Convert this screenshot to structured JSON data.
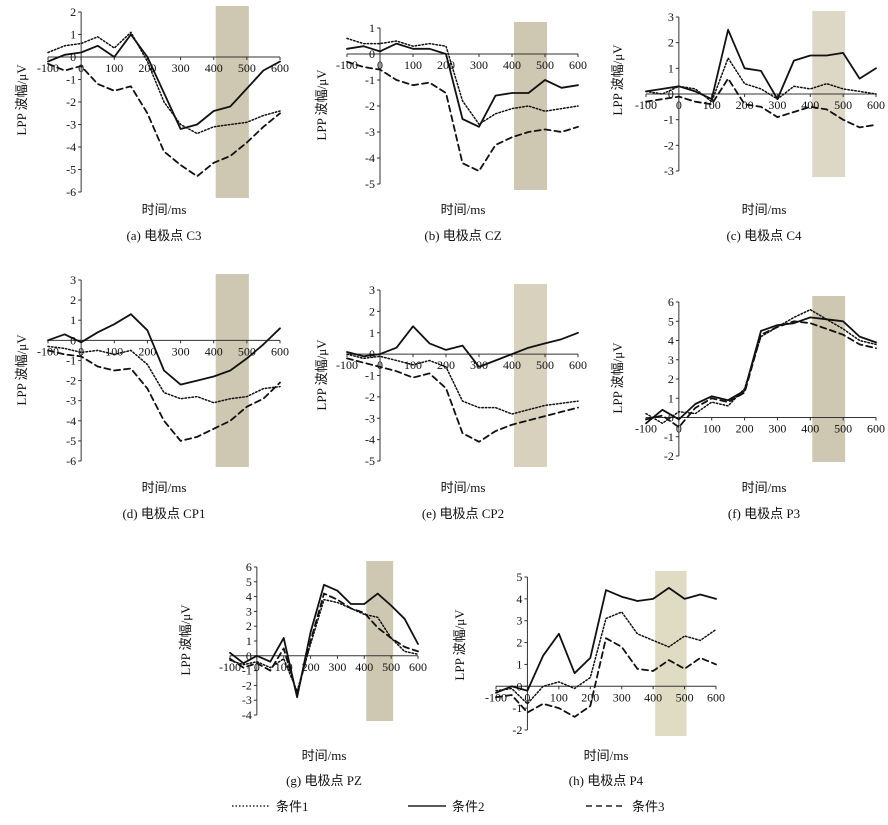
{
  "figure": {
    "legend": [
      {
        "label": "条件1",
        "style": "dotted"
      },
      {
        "label": "条件2",
        "style": "solid"
      },
      {
        "label": "条件3",
        "style": "dashed"
      }
    ]
  },
  "chart_data": [
    {
      "type": "line",
      "caption": "(a) 电极点 C3",
      "xlabel": "时间/ms",
      "ylabel": "LPP 波幅/μV",
      "xlim": [
        -100,
        600
      ],
      "ylim": [
        -6,
        2
      ],
      "xticks": [
        -100,
        0,
        100,
        200,
        300,
        400,
        500,
        600
      ],
      "yticks": [
        2,
        1,
        0,
        -1,
        -2,
        -3,
        -4,
        -5,
        -6
      ],
      "window": [
        400,
        500
      ],
      "window_color": "#c9c1a8",
      "series": [
        {
          "name": "条件1",
          "x": [
            -100,
            -50,
            0,
            50,
            100,
            150,
            200,
            250,
            300,
            350,
            400,
            450,
            500,
            550,
            600
          ],
          "values": [
            0.2,
            0.5,
            0.6,
            0.9,
            0.4,
            1.1,
            -0.2,
            -2.0,
            -3.0,
            -3.4,
            -3.1,
            -3.0,
            -2.9,
            -2.6,
            -2.4
          ]
        },
        {
          "name": "条件2",
          "x": [
            -100,
            -50,
            0,
            50,
            100,
            150,
            200,
            250,
            300,
            350,
            400,
            450,
            500,
            550,
            600
          ],
          "values": [
            -0.2,
            0.1,
            0.2,
            0.5,
            0.0,
            1.0,
            0.0,
            -1.6,
            -3.2,
            -3.0,
            -2.4,
            -2.2,
            -1.4,
            -0.6,
            -0.2
          ]
        },
        {
          "name": "条件3",
          "x": [
            -100,
            -50,
            0,
            50,
            100,
            150,
            200,
            250,
            300,
            350,
            400,
            450,
            500,
            550,
            600
          ],
          "values": [
            -0.3,
            -0.6,
            -0.4,
            -1.2,
            -1.5,
            -1.3,
            -2.5,
            -4.2,
            -4.8,
            -5.3,
            -4.7,
            -4.4,
            -3.8,
            -3.1,
            -2.5
          ]
        }
      ]
    },
    {
      "type": "line",
      "caption": "(b) 电极点 CZ",
      "xlabel": "时间/ms",
      "ylabel": "LPP 波幅/μV",
      "xlim": [
        -100,
        600
      ],
      "ylim": [
        -5,
        1
      ],
      "xticks": [
        -100,
        0,
        100,
        200,
        300,
        400,
        500,
        600
      ],
      "yticks": [
        1,
        0,
        -1,
        -2,
        -3,
        -4,
        -5
      ],
      "window": [
        400,
        500
      ],
      "window_color": "#c9c1a8",
      "series": [
        {
          "name": "条件1",
          "x": [
            -100,
            -50,
            0,
            50,
            100,
            150,
            200,
            250,
            300,
            350,
            400,
            450,
            500,
            550,
            600
          ],
          "values": [
            0.6,
            0.4,
            0.4,
            0.5,
            0.3,
            0.4,
            0.3,
            -1.8,
            -2.7,
            -2.3,
            -2.1,
            -2.0,
            -2.2,
            -2.1,
            -2.0
          ]
        },
        {
          "name": "条件2",
          "x": [
            -100,
            -50,
            0,
            50,
            100,
            150,
            200,
            250,
            300,
            350,
            400,
            450,
            500,
            550,
            600
          ],
          "values": [
            0.2,
            0.3,
            0.1,
            0.4,
            0.2,
            0.2,
            0.0,
            -2.5,
            -2.8,
            -1.6,
            -1.5,
            -1.5,
            -1.0,
            -1.3,
            -1.2
          ]
        },
        {
          "name": "条件3",
          "x": [
            -100,
            -50,
            0,
            50,
            100,
            150,
            200,
            250,
            300,
            350,
            400,
            450,
            500,
            550,
            600
          ],
          "values": [
            -0.3,
            -0.5,
            -0.6,
            -1.0,
            -1.2,
            -1.1,
            -1.5,
            -4.2,
            -4.5,
            -3.5,
            -3.2,
            -3.0,
            -2.9,
            -3.0,
            -2.8
          ]
        }
      ]
    },
    {
      "type": "line",
      "caption": "(c) 电极点 C4",
      "xlabel": "时间/ms",
      "ylabel": "LPP 波幅/μV",
      "xlim": [
        -100,
        600
      ],
      "ylim": [
        -3,
        3
      ],
      "xticks": [
        -100,
        0,
        100,
        200,
        300,
        400,
        500,
        600
      ],
      "yticks": [
        3,
        2,
        1,
        0,
        -1,
        -2,
        -3
      ],
      "window": [
        400,
        500
      ],
      "window_color": "#d9d3bf",
      "series": [
        {
          "name": "条件1",
          "x": [
            -100,
            -50,
            0,
            50,
            100,
            150,
            200,
            250,
            300,
            350,
            400,
            450,
            500,
            550,
            600
          ],
          "values": [
            0.1,
            0.0,
            0.3,
            0.2,
            -0.3,
            1.4,
            0.4,
            0.2,
            -0.2,
            0.3,
            0.2,
            0.4,
            0.2,
            0.1,
            0.0
          ]
        },
        {
          "name": "条件2",
          "x": [
            -100,
            -50,
            0,
            50,
            100,
            150,
            200,
            250,
            300,
            350,
            400,
            450,
            500,
            550,
            600
          ],
          "values": [
            0.1,
            0.2,
            0.3,
            0.1,
            -0.2,
            2.5,
            1.0,
            0.9,
            -0.2,
            1.3,
            1.5,
            1.5,
            1.6,
            0.6,
            1.0
          ]
        },
        {
          "name": "条件3",
          "x": [
            -100,
            -50,
            0,
            50,
            100,
            150,
            200,
            250,
            300,
            350,
            400,
            450,
            500,
            550,
            600
          ],
          "values": [
            -0.3,
            -0.2,
            -0.1,
            -0.3,
            -0.4,
            0.6,
            -0.4,
            -0.5,
            -0.9,
            -0.7,
            -0.5,
            -0.6,
            -1.0,
            -1.3,
            -1.2
          ]
        }
      ]
    },
    {
      "type": "line",
      "caption": "(d) 电极点 CP1",
      "xlabel": "时间/ms",
      "ylabel": "LPP 波幅/μV",
      "xlim": [
        -100,
        600
      ],
      "ylim": [
        -6,
        3
      ],
      "xticks": [
        -100,
        0,
        100,
        200,
        300,
        400,
        500,
        600
      ],
      "yticks": [
        3,
        2,
        1,
        0,
        -1,
        -2,
        -3,
        -4,
        -5,
        -6
      ],
      "window": [
        400,
        500
      ],
      "window_color": "#c9c1a8",
      "series": [
        {
          "name": "条件1",
          "x": [
            -100,
            -50,
            0,
            50,
            100,
            150,
            200,
            250,
            300,
            350,
            400,
            450,
            500,
            550,
            600
          ],
          "values": [
            -0.3,
            -0.4,
            -0.6,
            -0.5,
            -0.7,
            -0.5,
            -1.2,
            -2.6,
            -2.9,
            -2.8,
            -3.1,
            -2.9,
            -2.8,
            -2.4,
            -2.3
          ]
        },
        {
          "name": "条件2",
          "x": [
            -100,
            -50,
            0,
            50,
            100,
            150,
            200,
            250,
            300,
            350,
            400,
            450,
            500,
            550,
            600
          ],
          "values": [
            0.0,
            0.3,
            -0.1,
            0.4,
            0.8,
            1.3,
            0.5,
            -1.5,
            -2.2,
            -2.0,
            -1.8,
            -1.5,
            -0.9,
            -0.2,
            0.6
          ]
        },
        {
          "name": "条件3",
          "x": [
            -100,
            -50,
            0,
            50,
            100,
            150,
            200,
            250,
            300,
            350,
            400,
            450,
            500,
            550,
            600
          ],
          "values": [
            -0.5,
            -0.7,
            -0.8,
            -1.3,
            -1.5,
            -1.4,
            -2.4,
            -4.0,
            -5.0,
            -4.8,
            -4.4,
            -4.0,
            -3.3,
            -2.9,
            -2.1
          ]
        }
      ]
    },
    {
      "type": "line",
      "caption": "(e) 电极点 CP2",
      "xlabel": "时间/ms",
      "ylabel": "LPP 波幅/μV",
      "xlim": [
        -100,
        600
      ],
      "ylim": [
        -5,
        3
      ],
      "xticks": [
        -100,
        0,
        100,
        200,
        300,
        400,
        500,
        600
      ],
      "yticks": [
        3,
        2,
        1,
        0,
        -1,
        -2,
        -3,
        -4,
        -5
      ],
      "window": [
        400,
        500
      ],
      "window_color": "#d3ccb6",
      "series": [
        {
          "name": "条件1",
          "x": [
            -100,
            -50,
            0,
            50,
            100,
            150,
            200,
            250,
            300,
            350,
            400,
            450,
            500,
            550,
            600
          ],
          "values": [
            0.0,
            -0.2,
            -0.1,
            -0.3,
            -0.5,
            -0.3,
            -0.6,
            -2.2,
            -2.5,
            -2.5,
            -2.8,
            -2.6,
            -2.4,
            -2.3,
            -2.2
          ]
        },
        {
          "name": "条件2",
          "x": [
            -100,
            -50,
            0,
            50,
            100,
            150,
            200,
            250,
            300,
            350,
            400,
            450,
            500,
            550,
            600
          ],
          "values": [
            0.1,
            -0.1,
            0.0,
            0.3,
            1.3,
            0.5,
            0.2,
            0.4,
            -0.6,
            -0.3,
            0.0,
            0.3,
            0.5,
            0.7,
            1.0
          ]
        },
        {
          "name": "条件3",
          "x": [
            -100,
            -50,
            0,
            50,
            100,
            150,
            200,
            250,
            300,
            350,
            400,
            450,
            500,
            550,
            600
          ],
          "values": [
            -0.2,
            -0.4,
            -0.6,
            -0.8,
            -1.1,
            -0.9,
            -1.6,
            -3.7,
            -4.1,
            -3.6,
            -3.3,
            -3.1,
            -2.9,
            -2.7,
            -2.5
          ]
        }
      ]
    },
    {
      "type": "line",
      "caption": "(f) 电极点 P3",
      "xlabel": "时间/ms",
      "ylabel": "LPP 波幅/μV",
      "xlim": [
        -100,
        600
      ],
      "ylim": [
        -2,
        6
      ],
      "xticks": [
        -100,
        0,
        100,
        200,
        300,
        400,
        500,
        600
      ],
      "yticks": [
        6,
        5,
        4,
        3,
        2,
        1,
        0,
        -1,
        -2
      ],
      "window": [
        400,
        500
      ],
      "window_color": "#c9c1a8",
      "series": [
        {
          "name": "条件1",
          "x": [
            -100,
            -50,
            0,
            50,
            100,
            150,
            200,
            250,
            300,
            350,
            400,
            450,
            500,
            550,
            600
          ],
          "values": [
            0.2,
            -0.3,
            0.3,
            0.2,
            0.8,
            0.6,
            1.5,
            4.2,
            4.7,
            5.2,
            5.6,
            5.1,
            4.6,
            4.0,
            3.8
          ]
        },
        {
          "name": "条件2",
          "x": [
            -100,
            -50,
            0,
            50,
            100,
            150,
            200,
            250,
            300,
            350,
            400,
            450,
            500,
            550,
            600
          ],
          "values": [
            -0.3,
            0.4,
            -0.1,
            0.7,
            1.1,
            0.9,
            1.4,
            4.5,
            4.8,
            4.9,
            5.2,
            5.1,
            5.0,
            4.2,
            3.9
          ]
        },
        {
          "name": "条件3",
          "x": [
            -100,
            -50,
            0,
            50,
            100,
            150,
            200,
            250,
            300,
            350,
            400,
            450,
            500,
            550,
            600
          ],
          "values": [
            -0.1,
            0.1,
            -0.5,
            0.5,
            1.0,
            0.8,
            1.3,
            4.3,
            4.7,
            5.0,
            4.9,
            4.6,
            4.3,
            3.8,
            3.6
          ]
        }
      ]
    },
    {
      "type": "line",
      "caption": "(g) 电极点 PZ",
      "xlabel": "时间/ms",
      "ylabel": "LPP 波幅/μV",
      "xlim": [
        -100,
        600
      ],
      "ylim": [
        -4,
        6
      ],
      "xticks": [
        -100,
        0,
        100,
        200,
        300,
        400,
        500,
        600
      ],
      "yticks": [
        6,
        5,
        4,
        3,
        2,
        1,
        0,
        -1,
        -2,
        -3,
        -4
      ],
      "window": [
        400,
        500
      ],
      "window_color": "#c9c1a8",
      "series": [
        {
          "name": "条件1",
          "x": [
            -100,
            -50,
            0,
            50,
            100,
            150,
            200,
            250,
            300,
            350,
            400,
            450,
            500,
            550,
            600
          ],
          "values": [
            -0.3,
            -0.6,
            -0.4,
            -0.8,
            -0.2,
            -2.4,
            0.8,
            3.8,
            3.6,
            3.2,
            2.8,
            2.6,
            1.2,
            0.3,
            0.1
          ]
        },
        {
          "name": "条件2",
          "x": [
            -100,
            -50,
            0,
            50,
            100,
            150,
            200,
            250,
            300,
            350,
            400,
            450,
            500,
            550,
            600
          ],
          "values": [
            0.2,
            -0.5,
            0.0,
            -0.4,
            1.2,
            -2.8,
            1.6,
            4.8,
            4.4,
            3.5,
            3.5,
            4.2,
            3.4,
            2.5,
            0.8
          ]
        },
        {
          "name": "条件3",
          "x": [
            -100,
            -50,
            0,
            50,
            100,
            150,
            200,
            250,
            300,
            350,
            400,
            450,
            500,
            550,
            600
          ],
          "values": [
            -0.2,
            -0.8,
            -0.5,
            -1.0,
            0.5,
            -2.6,
            1.0,
            4.2,
            3.8,
            3.2,
            2.9,
            1.9,
            1.2,
            0.6,
            0.3
          ]
        }
      ]
    },
    {
      "type": "line",
      "caption": "(h) 电极点 P4",
      "xlabel": "时间/ms",
      "ylabel": "LPP 波幅/μV",
      "xlim": [
        -100,
        600
      ],
      "ylim": [
        -2,
        5
      ],
      "xticks": [
        -100,
        0,
        100,
        200,
        300,
        400,
        500,
        600
      ],
      "yticks": [
        5,
        4,
        3,
        2,
        1,
        0,
        -1,
        -2
      ],
      "window": [
        400,
        500
      ],
      "window_color": "#dcd8bd",
      "series": [
        {
          "name": "条件1",
          "x": [
            -100,
            -50,
            0,
            50,
            100,
            150,
            200,
            250,
            300,
            350,
            400,
            450,
            500,
            550,
            600
          ],
          "values": [
            -0.2,
            -0.1,
            -0.8,
            0.0,
            0.2,
            -0.1,
            0.4,
            3.1,
            3.4,
            2.4,
            2.1,
            1.8,
            2.3,
            2.1,
            2.6
          ]
        },
        {
          "name": "条件2",
          "x": [
            -100,
            -50,
            0,
            50,
            100,
            150,
            200,
            250,
            300,
            350,
            400,
            450,
            500,
            550,
            600
          ],
          "values": [
            -0.3,
            0.0,
            -0.2,
            1.4,
            2.4,
            0.6,
            1.3,
            4.4,
            4.1,
            3.9,
            4.0,
            4.5,
            4.0,
            4.2,
            4.0
          ]
        },
        {
          "name": "条件3",
          "x": [
            -100,
            -50,
            0,
            50,
            100,
            150,
            200,
            250,
            300,
            350,
            400,
            450,
            500,
            550,
            600
          ],
          "values": [
            -0.5,
            -0.4,
            -1.2,
            -0.8,
            -1.0,
            -1.4,
            -0.9,
            2.2,
            1.8,
            0.8,
            0.7,
            1.2,
            0.8,
            1.3,
            1.0
          ]
        }
      ]
    }
  ]
}
